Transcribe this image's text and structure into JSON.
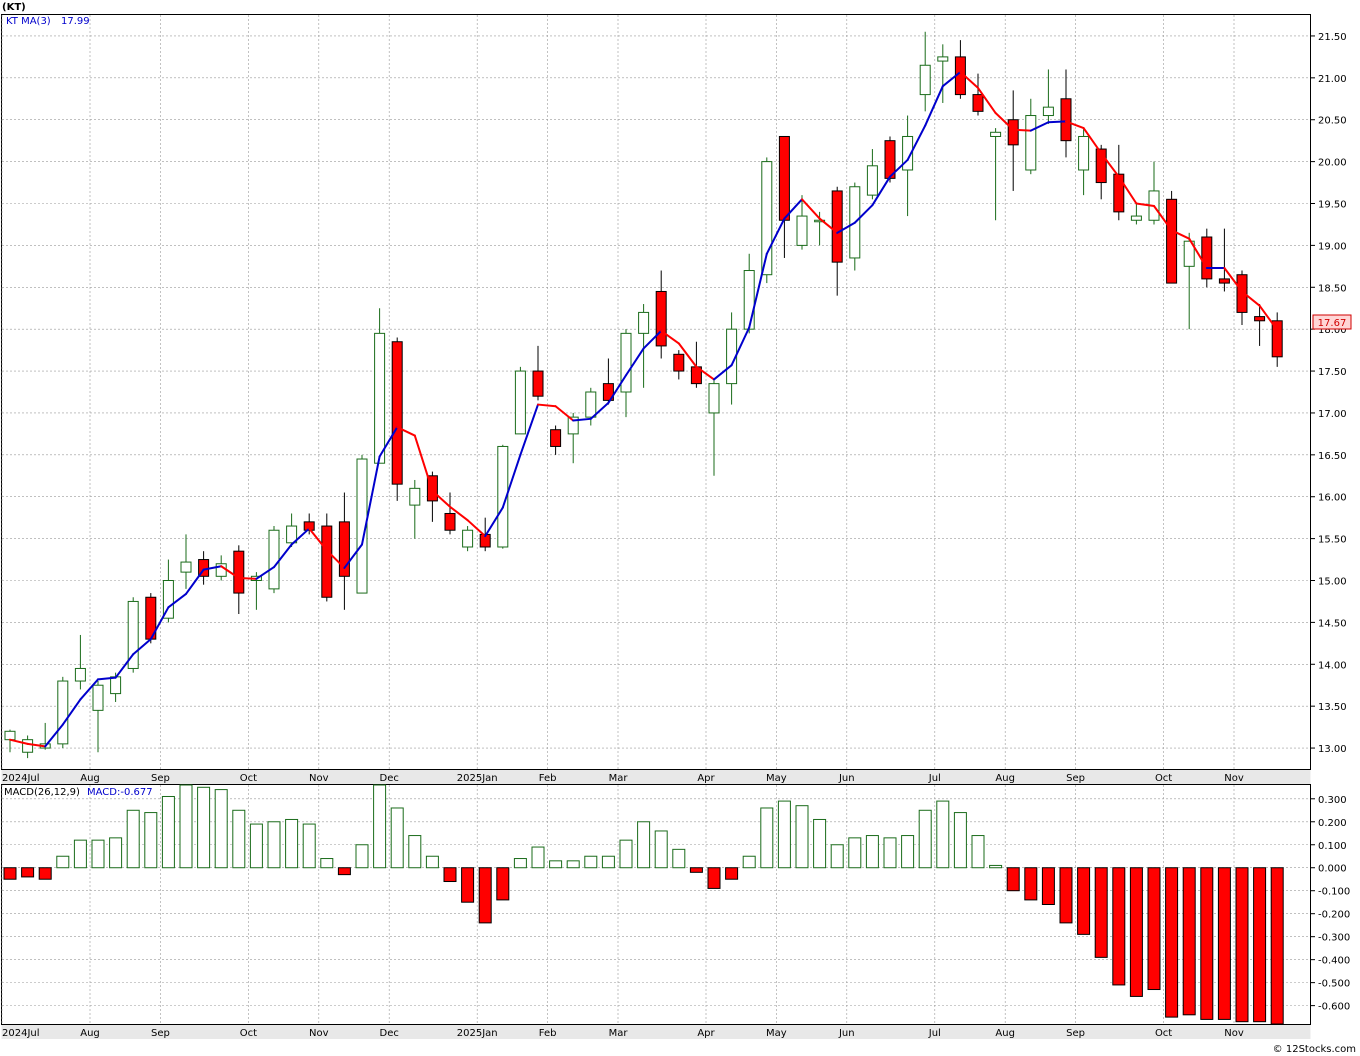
{
  "header": {
    "ticker": "(KT)",
    "ma_label": "KT  MA(3)",
    "ma_value": "17.99",
    "macd_label": "MACD(26,12,9)",
    "macd_value_label": "MACD:-0.677",
    "last_price": "17.67",
    "credit": "© 12Stocks.com"
  },
  "colors": {
    "up_candle": "#1a6b1a",
    "down_candle": "#ff0000",
    "ma_rising": "#0000cc",
    "ma_falling": "#ff0000",
    "macd_pos_stroke": "#1a6b1a",
    "macd_neg_fill": "#ff0000"
  },
  "chart_data": [
    {
      "type": "candlestick",
      "title": "(KT)",
      "ylim": [
        12.75,
        21.75
      ],
      "y_ticks": [
        "13.00",
        "13.50",
        "14.00",
        "14.50",
        "15.00",
        "15.50",
        "16.00",
        "16.50",
        "17.00",
        "17.50",
        "18.00",
        "18.50",
        "19.00",
        "19.50",
        "20.00",
        "20.50",
        "21.00",
        "21.50"
      ],
      "x_labels": [
        "2024Jul",
        "Aug",
        "Sep",
        "Oct",
        "Nov",
        "Dec",
        "2025Jan",
        "Feb",
        "Mar",
        "Apr",
        "May",
        "Jun",
        "Jul",
        "Aug",
        "Sep",
        "Oct",
        "Nov"
      ],
      "x_label_index": [
        0,
        5,
        9,
        14,
        18,
        22,
        27,
        31,
        35,
        40,
        44,
        48,
        53,
        57,
        61,
        66,
        70
      ],
      "grid": true,
      "ohlc": [
        [
          13.1,
          13.2,
          12.95,
          13.22
        ],
        [
          12.95,
          13.1,
          12.88,
          13.15
        ],
        [
          13.0,
          13.05,
          12.98,
          13.3
        ],
        [
          13.05,
          13.8,
          13.0,
          13.85
        ],
        [
          13.8,
          13.95,
          13.7,
          14.35
        ],
        [
          13.45,
          13.75,
          12.95,
          13.8
        ],
        [
          13.65,
          13.85,
          13.55,
          13.9
        ],
        [
          13.95,
          14.75,
          13.9,
          14.8
        ],
        [
          14.8,
          14.3,
          14.25,
          14.85
        ],
        [
          14.55,
          15.0,
          14.5,
          15.25
        ],
        [
          15.1,
          15.22,
          14.9,
          15.55
        ],
        [
          15.25,
          15.05,
          14.95,
          15.35
        ],
        [
          15.05,
          15.2,
          15.0,
          15.3
        ],
        [
          15.35,
          14.85,
          14.6,
          15.42
        ],
        [
          15.0,
          15.05,
          14.65,
          15.1
        ],
        [
          14.9,
          15.6,
          14.85,
          15.65
        ],
        [
          15.45,
          15.65,
          15.4,
          15.8
        ],
        [
          15.7,
          15.6,
          15.55,
          15.8
        ],
        [
          15.65,
          14.8,
          14.75,
          15.8
        ],
        [
          15.7,
          15.05,
          14.65,
          16.05
        ],
        [
          14.85,
          16.45,
          14.85,
          16.5
        ],
        [
          16.4,
          17.95,
          16.4,
          18.25
        ],
        [
          17.85,
          16.15,
          15.95,
          17.9
        ],
        [
          15.9,
          16.1,
          15.5,
          16.2
        ],
        [
          16.25,
          15.95,
          15.7,
          16.3
        ],
        [
          15.8,
          15.6,
          15.55,
          16.05
        ],
        [
          15.4,
          15.6,
          15.35,
          15.65
        ],
        [
          15.55,
          15.4,
          15.35,
          15.75
        ],
        [
          15.4,
          16.6,
          15.38,
          16.62
        ],
        [
          16.75,
          17.5,
          16.75,
          17.55
        ],
        [
          17.5,
          17.2,
          17.15,
          17.8
        ],
        [
          16.8,
          16.6,
          16.5,
          16.85
        ],
        [
          16.75,
          16.95,
          16.4,
          17.0
        ],
        [
          16.95,
          17.25,
          16.85,
          17.3
        ],
        [
          17.35,
          17.15,
          17.1,
          17.65
        ],
        [
          17.25,
          17.95,
          16.95,
          18.0
        ],
        [
          17.95,
          18.2,
          17.3,
          18.3
        ],
        [
          18.45,
          17.8,
          17.65,
          18.7
        ],
        [
          17.7,
          17.5,
          17.4,
          17.75
        ],
        [
          17.55,
          17.35,
          17.3,
          17.85
        ],
        [
          17.0,
          17.35,
          16.25,
          17.4
        ],
        [
          17.35,
          18.0,
          17.1,
          18.2
        ],
        [
          18.0,
          18.7,
          17.95,
          18.9
        ],
        [
          18.65,
          20.0,
          18.55,
          20.05
        ],
        [
          20.3,
          19.3,
          18.85,
          20.3
        ],
        [
          19.0,
          19.35,
          18.95,
          19.6
        ],
        [
          19.3,
          19.3,
          19.0,
          19.4
        ],
        [
          19.65,
          18.8,
          18.4,
          19.7
        ],
        [
          18.85,
          19.7,
          18.7,
          19.75
        ],
        [
          19.6,
          19.95,
          19.55,
          20.15
        ],
        [
          20.25,
          19.8,
          19.75,
          20.3
        ],
        [
          19.9,
          20.3,
          19.35,
          20.55
        ],
        [
          20.8,
          21.15,
          20.6,
          21.55
        ],
        [
          21.2,
          21.25,
          20.7,
          21.4
        ],
        [
          21.25,
          20.8,
          20.75,
          21.45
        ],
        [
          20.8,
          20.6,
          20.55,
          21.05
        ],
        [
          20.3,
          20.35,
          19.3,
          20.4
        ],
        [
          20.5,
          20.2,
          19.65,
          20.85
        ],
        [
          19.9,
          20.55,
          19.85,
          20.75
        ],
        [
          20.55,
          20.65,
          20.45,
          21.1
        ],
        [
          20.75,
          20.25,
          20.05,
          21.1
        ],
        [
          19.9,
          20.3,
          19.6,
          20.4
        ],
        [
          20.15,
          19.75,
          19.55,
          20.2
        ],
        [
          19.85,
          19.4,
          19.3,
          20.2
        ],
        [
          19.3,
          19.35,
          19.25,
          19.5
        ],
        [
          19.3,
          19.65,
          19.25,
          20.0
        ],
        [
          19.55,
          18.55,
          18.55,
          19.65
        ],
        [
          18.75,
          19.05,
          18.0,
          19.15
        ],
        [
          19.1,
          18.6,
          18.5,
          19.2
        ],
        [
          18.6,
          18.55,
          18.45,
          19.2
        ],
        [
          18.65,
          18.2,
          18.05,
          18.7
        ],
        [
          18.15,
          18.1,
          17.8,
          18.3
        ],
        [
          18.1,
          17.67,
          17.55,
          18.2
        ]
      ],
      "ma3": [
        13.1,
        13.05,
        13.02,
        13.28,
        13.58,
        13.82,
        13.84,
        14.12,
        14.3,
        14.68,
        14.84,
        15.13,
        15.17,
        15.03,
        15.02,
        15.16,
        15.43,
        15.62,
        15.36,
        15.15,
        15.43,
        16.48,
        16.83,
        16.73,
        16.07,
        15.88,
        15.72,
        15.53,
        15.87,
        16.5,
        17.1,
        17.08,
        16.91,
        16.93,
        17.12,
        17.45,
        17.77,
        17.98,
        17.83,
        17.55,
        17.4,
        17.57,
        18.02,
        18.9,
        19.32,
        19.55,
        19.32,
        19.15,
        19.27,
        19.48,
        19.82,
        20.02,
        20.43,
        20.9,
        21.07,
        20.88,
        20.58,
        20.38,
        20.37,
        20.47,
        20.48,
        20.4,
        20.1,
        19.82,
        19.5,
        19.47,
        19.18,
        19.08,
        18.73,
        18.73,
        18.45,
        18.28,
        17.99
      ],
      "macd_ylim": [
        -0.68,
        0.36
      ],
      "macd_ticks": [
        "0.300",
        "0.200",
        "0.100",
        "0.000",
        "-0.100",
        "-0.200",
        "-0.300",
        "-0.400",
        "-0.500",
        "-0.600"
      ],
      "macd": [
        -0.05,
        -0.04,
        -0.05,
        0.05,
        0.12,
        0.12,
        0.13,
        0.25,
        0.24,
        0.31,
        0.36,
        0.35,
        0.34,
        0.25,
        0.19,
        0.2,
        0.21,
        0.19,
        0.04,
        -0.03,
        0.1,
        0.36,
        0.26,
        0.14,
        0.05,
        -0.06,
        -0.15,
        -0.24,
        -0.14,
        0.04,
        0.09,
        0.03,
        0.03,
        0.05,
        0.05,
        0.12,
        0.2,
        0.16,
        0.08,
        -0.02,
        -0.09,
        -0.05,
        0.05,
        0.26,
        0.29,
        0.27,
        0.21,
        0.1,
        0.13,
        0.14,
        0.13,
        0.14,
        0.25,
        0.29,
        0.24,
        0.14,
        0.01,
        -0.1,
        -0.14,
        -0.16,
        -0.24,
        -0.29,
        -0.39,
        -0.51,
        -0.56,
        -0.53,
        -0.65,
        -0.64,
        -0.66,
        -0.66,
        -0.67,
        -0.67,
        -0.68
      ]
    }
  ]
}
